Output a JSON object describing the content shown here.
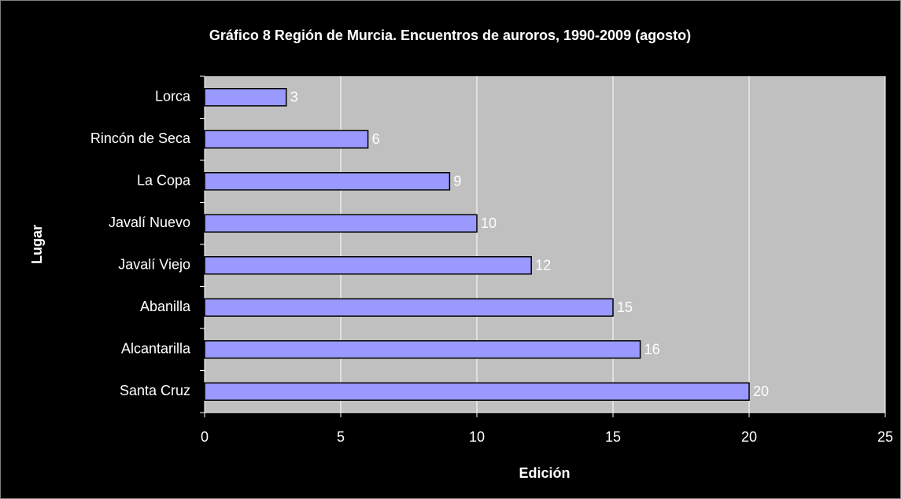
{
  "chart_data": {
    "type": "bar",
    "orientation": "horizontal",
    "title": "Gráfico 8 Región de Murcia. Encuentros de auroros, 1990-2009 (agosto)",
    "x_label": "Edición",
    "y_label": "Lugar",
    "categories": [
      "Lorca",
      "Rincón de Seca",
      "La Copa",
      "Javalí Nuevo",
      "Javalí Viejo",
      "Abanilla",
      "Alcantarilla",
      "Santa Cruz"
    ],
    "values": [
      3,
      6,
      9,
      10,
      12,
      15,
      16,
      20
    ],
    "color": "#9999ff",
    "xlim": [
      0,
      25
    ],
    "xticks": [
      0,
      5,
      10,
      15,
      20,
      25
    ],
    "grid": true
  }
}
